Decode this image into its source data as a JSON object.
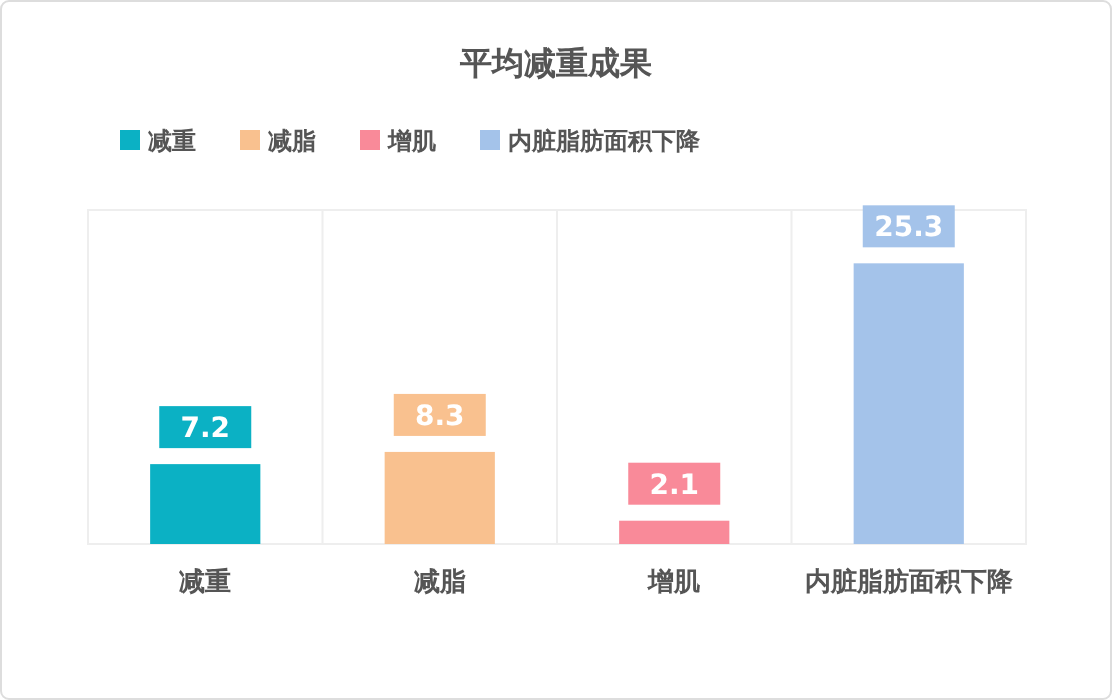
{
  "chart_data": {
    "type": "bar",
    "title": "平均减重成果",
    "categories": [
      "减重",
      "减脂",
      "增肌",
      "内脏脂肪面积下降"
    ],
    "series": [
      {
        "name": "减重",
        "color": "#0bb1c4",
        "values": [
          7.2,
          null,
          null,
          null
        ]
      },
      {
        "name": "减脂",
        "color": "#f9c18f",
        "values": [
          null,
          8.3,
          null,
          null
        ]
      },
      {
        "name": "增肌",
        "color": "#f98a99",
        "values": [
          null,
          null,
          2.1,
          null
        ]
      },
      {
        "name": "内脏脂肪面积下降",
        "color": "#a4c3ea",
        "values": [
          null,
          null,
          null,
          25.3
        ]
      }
    ],
    "data_labels": true,
    "grid": "x",
    "legend": "top left"
  }
}
